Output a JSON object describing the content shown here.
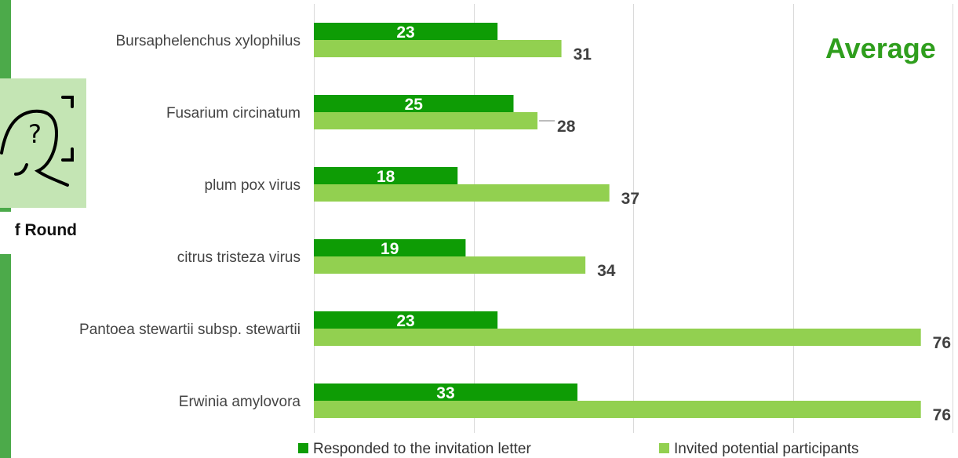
{
  "sidebar": {
    "round_label": "f Round"
  },
  "overlay": {
    "average_label": "Average"
  },
  "colors": {
    "responded": "#0e9c05",
    "invited": "#92d050",
    "grid": "#d9d9d9",
    "avg_text": "#2f9e1d",
    "panel": "#c4e5b4"
  },
  "icons": [
    "face-scan-question-icon"
  ],
  "chart_data": {
    "type": "bar",
    "orientation": "horizontal",
    "categories": [
      "Bursaphelenchus xylophilus",
      "Fusarium circinatum",
      "plum pox virus",
      "citrus tristeza virus",
      "Pantoea stewartii subsp. stewartii",
      "Erwinia amylovora"
    ],
    "series": [
      {
        "name": "Responded to the invitation letter",
        "values": [
          23,
          25,
          18,
          19,
          23,
          33
        ]
      },
      {
        "name": "Invited potential participants",
        "values": [
          31,
          28,
          37,
          34,
          76,
          76
        ]
      }
    ],
    "xlim": [
      0,
      80
    ],
    "grid": true,
    "legend": "bottom"
  }
}
